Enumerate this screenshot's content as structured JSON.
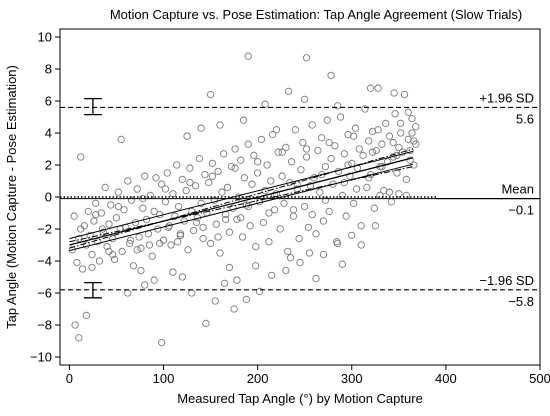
{
  "chart_data": {
    "type": "scatter",
    "title": "Motion Capture vs. Pose Estimation: Tap Angle Agreement (Slow Trials)",
    "xlabel": "Measured Tap Angle (°) by Motion Capture",
    "ylabel": "Tap Angle (Motion Capture - Pose Estimation)",
    "xlim": [
      -10,
      500
    ],
    "ylim": [
      -10.5,
      10.5
    ],
    "xticks": [
      0,
      100,
      200,
      300,
      400,
      500
    ],
    "yticks": [
      -10,
      -8,
      -6,
      -4,
      -2,
      0,
      2,
      4,
      6,
      8,
      10
    ],
    "grid": false,
    "reference_lines": {
      "mean": {
        "name": "Mean",
        "value": -0.1,
        "value_label": "−0.1"
      },
      "upper_loa": {
        "name": "+1.96 SD",
        "value": 5.6,
        "value_label": "5.6"
      },
      "lower_loa": {
        "name": "−1.96 SD",
        "value": -5.8,
        "value_label": "−5.8"
      },
      "zero_line": 0
    },
    "ci_bars": [
      {
        "x": 25,
        "center": 5.6,
        "low": 5.15,
        "high": 6.15
      },
      {
        "x": 25,
        "center": -5.8,
        "low": -6.3,
        "high": -5.35
      }
    ],
    "regression": {
      "x_range": [
        0,
        365
      ],
      "fit": [
        -3.0,
        2.45
      ],
      "ci_low": [
        -3.35,
        2.05
      ],
      "ci_high": [
        -2.6,
        2.85
      ],
      "pred_low": [
        -2.8,
        1.9
      ],
      "pred_high": [
        -3.2,
        3.0
      ]
    },
    "points": [
      [
        3,
        -3.3
      ],
      [
        5,
        -1.2
      ],
      [
        8,
        -4.1
      ],
      [
        10,
        -2.6
      ],
      [
        12,
        -2.0
      ],
      [
        14,
        -4.5
      ],
      [
        16,
        -1.8
      ],
      [
        18,
        -3.0
      ],
      [
        20,
        -0.9
      ],
      [
        22,
        -2.4
      ],
      [
        24,
        -3.6
      ],
      [
        26,
        -1.5
      ],
      [
        28,
        -0.4
      ],
      [
        30,
        -2.8
      ],
      [
        32,
        -4.0
      ],
      [
        34,
        -1.0
      ],
      [
        36,
        -2.2
      ],
      [
        38,
        0.6
      ],
      [
        40,
        -3.1
      ],
      [
        42,
        -1.7
      ],
      [
        44,
        -0.5
      ],
      [
        46,
        -2.6
      ],
      [
        48,
        -3.9
      ],
      [
        50,
        -1.3
      ],
      [
        52,
        0.3
      ],
      [
        54,
        -2.0
      ],
      [
        56,
        -3.4
      ],
      [
        58,
        -0.8
      ],
      [
        60,
        -1.9
      ],
      [
        62,
        1.0
      ],
      [
        64,
        -2.9
      ],
      [
        66,
        -0.2
      ],
      [
        68,
        -4.3
      ],
      [
        70,
        -1.6
      ],
      [
        72,
        0.5
      ],
      [
        74,
        -2.5
      ],
      [
        76,
        -3.2
      ],
      [
        78,
        -0.7
      ],
      [
        80,
        1.3
      ],
      [
        82,
        -1.4
      ],
      [
        84,
        -2.3
      ],
      [
        86,
        0.1
      ],
      [
        88,
        -3.7
      ],
      [
        90,
        -0.9
      ],
      [
        92,
        1.2
      ],
      [
        94,
        -2.0
      ],
      [
        96,
        -1.1
      ],
      [
        98,
        0.8
      ],
      [
        100,
        -2.7
      ],
      [
        102,
        -0.3
      ],
      [
        104,
        1.5
      ],
      [
        106,
        -1.8
      ],
      [
        108,
        -3.0
      ],
      [
        110,
        0.2
      ],
      [
        112,
        -1.2
      ],
      [
        114,
        2.0
      ],
      [
        116,
        -0.6
      ],
      [
        118,
        -2.4
      ],
      [
        120,
        1.1
      ],
      [
        122,
        -1.5
      ],
      [
        124,
        0.4
      ],
      [
        126,
        -3.3
      ],
      [
        128,
        1.8
      ],
      [
        130,
        -0.9
      ],
      [
        132,
        -2.1
      ],
      [
        134,
        0.7
      ],
      [
        136,
        -1.3
      ],
      [
        138,
        2.4
      ],
      [
        140,
        -0.4
      ],
      [
        142,
        -2.6
      ],
      [
        144,
        1.4
      ],
      [
        146,
        -1.0
      ],
      [
        148,
        0.9
      ],
      [
        150,
        -2.9
      ],
      [
        152,
        2.1
      ],
      [
        154,
        -0.2
      ],
      [
        156,
        -1.7
      ],
      [
        158,
        1.6
      ],
      [
        160,
        -3.5
      ],
      [
        162,
        0.3
      ],
      [
        164,
        2.7
      ],
      [
        166,
        -1.1
      ],
      [
        168,
        0.6
      ],
      [
        170,
        -2.2
      ],
      [
        172,
        1.9
      ],
      [
        174,
        -0.7
      ],
      [
        176,
        3.0
      ],
      [
        178,
        -1.4
      ],
      [
        180,
        0.0
      ],
      [
        182,
        2.3
      ],
      [
        184,
        -2.5
      ],
      [
        186,
        1.2
      ],
      [
        188,
        -0.5
      ],
      [
        190,
        3.3
      ],
      [
        192,
        -1.8
      ],
      [
        194,
        0.8
      ],
      [
        196,
        2.6
      ],
      [
        198,
        -3.1
      ],
      [
        200,
        1.5
      ],
      [
        202,
        -0.3
      ],
      [
        204,
        3.6
      ],
      [
        206,
        -1.6
      ],
      [
        208,
        0.4
      ],
      [
        210,
        2.0
      ],
      [
        212,
        -2.8
      ],
      [
        214,
        1.0
      ],
      [
        216,
        3.9
      ],
      [
        218,
        -0.8
      ],
      [
        220,
        0.2
      ],
      [
        222,
        2.8
      ],
      [
        224,
        -2.0
      ],
      [
        226,
        1.3
      ],
      [
        228,
        -0.4
      ],
      [
        230,
        3.1
      ],
      [
        232,
        -3.4
      ],
      [
        234,
        0.9
      ],
      [
        236,
        2.2
      ],
      [
        238,
        -1.2
      ],
      [
        240,
        4.2
      ],
      [
        242,
        0.5
      ],
      [
        244,
        -2.6
      ],
      [
        246,
        1.7
      ],
      [
        248,
        3.4
      ],
      [
        250,
        -0.6
      ],
      [
        252,
        2.5
      ],
      [
        254,
        -1.9
      ],
      [
        256,
        0.7
      ],
      [
        258,
        4.5
      ],
      [
        260,
        1.2
      ],
      [
        262,
        -2.3
      ],
      [
        264,
        2.9
      ],
      [
        266,
        0.3
      ],
      [
        268,
        3.7
      ],
      [
        270,
        -1.5
      ],
      [
        272,
        1.9
      ],
      [
        274,
        4.8
      ],
      [
        276,
        -0.9
      ],
      [
        278,
        2.4
      ],
      [
        280,
        0.8
      ],
      [
        282,
        3.2
      ],
      [
        284,
        -2.8
      ],
      [
        286,
        1.6
      ],
      [
        288,
        5.0
      ],
      [
        290,
        0.1
      ],
      [
        292,
        2.7
      ],
      [
        294,
        -1.2
      ],
      [
        296,
        3.9
      ],
      [
        298,
        1.3
      ],
      [
        300,
        2.1
      ],
      [
        302,
        -0.4
      ],
      [
        304,
        4.3
      ],
      [
        306,
        1.8
      ],
      [
        308,
        3.0
      ],
      [
        310,
        -1.8
      ],
      [
        312,
        2.6
      ],
      [
        314,
        5.5
      ],
      [
        316,
        0.6
      ],
      [
        318,
        3.5
      ],
      [
        320,
        1.4
      ],
      [
        322,
        4.1
      ],
      [
        324,
        -0.7
      ],
      [
        326,
        2.9
      ],
      [
        328,
        6.8
      ],
      [
        330,
        1.9
      ],
      [
        332,
        3.3
      ],
      [
        334,
        0.4
      ],
      [
        336,
        4.6
      ],
      [
        338,
        2.2
      ],
      [
        340,
        3.8
      ],
      [
        342,
        -0.3
      ],
      [
        344,
        2.5
      ],
      [
        346,
        5.2
      ],
      [
        348,
        1.5
      ],
      [
        350,
        3.1
      ],
      [
        352,
        4.0
      ],
      [
        354,
        2.8
      ],
      [
        356,
        6.4
      ],
      [
        358,
        1.1
      ],
      [
        360,
        3.6
      ],
      [
        362,
        2.3
      ],
      [
        364,
        4.9
      ],
      [
        366,
        2.0
      ],
      [
        368,
        3.3
      ],
      [
        358,
        0.1
      ],
      [
        350,
        0.2
      ],
      [
        340,
        0.3
      ],
      [
        330,
        0.1
      ],
      [
        6,
        -8.0
      ],
      [
        10,
        -8.8
      ],
      [
        18,
        -7.4
      ],
      [
        98,
        -9.1
      ],
      [
        145,
        -7.9
      ],
      [
        130,
        -6.0
      ],
      [
        155,
        -6.5
      ],
      [
        175,
        -7.0
      ],
      [
        188,
        -6.4
      ],
      [
        202,
        -5.9
      ],
      [
        62,
        -6.0
      ],
      [
        90,
        -5.2
      ],
      [
        120,
        -5.0
      ],
      [
        165,
        -5.4
      ],
      [
        230,
        -4.6
      ],
      [
        262,
        -5.1
      ],
      [
        290,
        -4.2
      ],
      [
        80,
        -5.5
      ],
      [
        110,
        -4.7
      ],
      [
        170,
        -4.4
      ],
      [
        190,
        8.8
      ],
      [
        252,
        8.7
      ],
      [
        278,
        7.6
      ],
      [
        208,
        5.8
      ],
      [
        150,
        6.4
      ],
      [
        233,
        6.6
      ],
      [
        250,
        6.1
      ],
      [
        285,
        5.7
      ],
      [
        320,
        6.8
      ],
      [
        345,
        6.5
      ],
      [
        55,
        3.6
      ],
      [
        12,
        2.5
      ],
      [
        42,
        -3.4
      ],
      [
        76,
        -4.6
      ],
      [
        185,
        4.8
      ],
      [
        220,
        4.2
      ],
      [
        235,
        -3.8
      ],
      [
        270,
        -3.6
      ],
      [
        300,
        -2.4
      ],
      [
        310,
        -3.0
      ],
      [
        125,
        3.8
      ],
      [
        140,
        4.3
      ],
      [
        160,
        4.5
      ],
      [
        178,
        -5.2
      ],
      [
        198,
        -4.3
      ],
      [
        215,
        -4.9
      ],
      [
        245,
        -4.1
      ],
      [
        255,
        -3.5
      ],
      [
        285,
        -2.9
      ],
      [
        325,
        -1.8
      ],
      [
        35,
        -2.0
      ],
      [
        65,
        -2.7
      ],
      [
        85,
        -3.0
      ],
      [
        105,
        -1.9
      ],
      [
        115,
        -2.8
      ],
      [
        135,
        -1.6
      ],
      [
        158,
        -2.5
      ],
      [
        182,
        -1.3
      ],
      [
        212,
        -1.0
      ],
      [
        238,
        -0.8
      ],
      [
        258,
        -1.1
      ],
      [
        272,
        -0.2
      ],
      [
        292,
        0.9
      ],
      [
        305,
        0.5
      ],
      [
        318,
        1.2
      ],
      [
        332,
        1.9
      ],
      [
        348,
        2.6
      ],
      [
        362,
        2.9
      ],
      [
        366,
        3.5
      ],
      [
        360,
        5.3
      ],
      [
        24,
        -4.4
      ],
      [
        46,
        -3.6
      ],
      [
        72,
        -3.3
      ],
      [
        96,
        -2.9
      ],
      [
        118,
        -2.3
      ],
      [
        142,
        -1.9
      ],
      [
        166,
        -1.4
      ],
      [
        190,
        -0.6
      ],
      [
        218,
        0.1
      ],
      [
        242,
        0.8
      ],
      [
        268,
        1.4
      ],
      [
        296,
        2.0
      ],
      [
        322,
        2.8
      ],
      [
        344,
        3.4
      ],
      [
        364,
        4.0
      ],
      [
        28,
        -1.1
      ],
      [
        52,
        -0.6
      ],
      [
        78,
        -0.1
      ],
      [
        102,
        0.5
      ],
      [
        128,
        0.9
      ],
      [
        152,
        1.3
      ],
      [
        176,
        1.8
      ],
      [
        200,
        2.2
      ],
      [
        226,
        2.8
      ],
      [
        252,
        3.0
      ],
      [
        276,
        3.4
      ],
      [
        302,
        3.8
      ],
      [
        328,
        4.2
      ],
      [
        352,
        4.6
      ],
      [
        368,
        4.4
      ]
    ]
  }
}
